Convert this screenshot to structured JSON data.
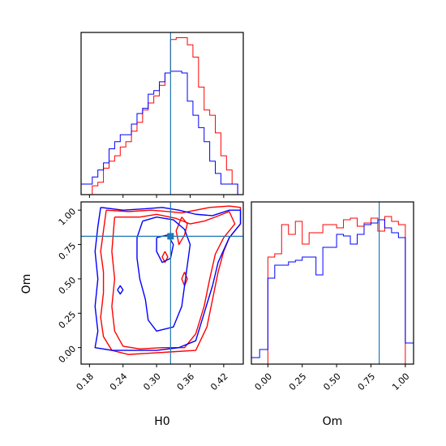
{
  "chart_data": [
    {
      "type": "histogram",
      "panel": "H0 marginal",
      "parameter": "H0",
      "xlim": [
        0.165,
        0.455
      ],
      "truth": 0.325,
      "bin_edges": [
        0.165,
        0.175,
        0.185,
        0.195,
        0.205,
        0.215,
        0.225,
        0.235,
        0.245,
        0.255,
        0.265,
        0.275,
        0.285,
        0.295,
        0.305,
        0.315,
        0.325,
        0.335,
        0.345,
        0.355,
        0.365,
        0.375,
        0.385,
        0.395,
        0.405,
        0.415,
        0.425,
        0.435,
        0.445,
        0.455
      ],
      "series": [
        {
          "color": "#ff0000",
          "values": [
            0,
            0,
            0.05,
            0.07,
            0.15,
            0.19,
            0.22,
            0.27,
            0.3,
            0.36,
            0.41,
            0.48,
            0.52,
            0.56,
            0.62,
            0.69,
            0.88,
            0.89,
            0.89,
            0.85,
            0.78,
            0.61,
            0.48,
            0.45,
            0.35,
            0.22,
            0.14,
            0.06,
            0.0
          ]
        },
        {
          "color": "#0000ff",
          "values": [
            0.06,
            0.06,
            0.1,
            0.14,
            0.18,
            0.26,
            0.3,
            0.34,
            0.34,
            0.4,
            0.46,
            0.49,
            0.57,
            0.59,
            0.64,
            0.69,
            0.7,
            0.7,
            0.69,
            0.53,
            0.45,
            0.38,
            0.3,
            0.19,
            0.12,
            0.06,
            0.06,
            0.06,
            0.0
          ]
        }
      ]
    },
    {
      "type": "contour",
      "panel": "H0 vs Om",
      "xlabel": "H0",
      "ylabel": "Om",
      "xlim": [
        0.165,
        0.455
      ],
      "ylim": [
        -0.12,
        1.06
      ],
      "xticks": [
        "0.18",
        "0.24",
        "0.30",
        "0.36",
        "0.42"
      ],
      "yticks": [
        "0.00",
        "0.25",
        "0.50",
        "0.75",
        "1.00"
      ],
      "truth": {
        "x": 0.325,
        "y": 0.81
      },
      "series": [
        {
          "color": "#ff0000",
          "contours": [
            [
              [
                0.21,
                1.0
              ],
              [
                0.25,
                0.99
              ],
              [
                0.29,
                1.0
              ],
              [
                0.32,
                0.99
              ],
              [
                0.345,
                0.98
              ],
              [
                0.37,
                1.0
              ],
              [
                0.395,
                1.02
              ],
              [
                0.43,
                1.03
              ],
              [
                0.45,
                1.02
              ],
              [
                0.45,
                0.9
              ],
              [
                0.43,
                0.8
              ],
              [
                0.42,
                0.7
              ],
              [
                0.41,
                0.55
              ],
              [
                0.4,
                0.35
              ],
              [
                0.39,
                0.15
              ],
              [
                0.37,
                -0.02
              ],
              [
                0.33,
                -0.03
              ],
              [
                0.29,
                -0.04
              ],
              [
                0.25,
                -0.05
              ],
              [
                0.22,
                -0.02
              ],
              [
                0.205,
                0.08
              ],
              [
                0.2,
                0.22
              ],
              [
                0.205,
                0.4
              ],
              [
                0.205,
                0.55
              ],
              [
                0.2,
                0.7
              ],
              [
                0.205,
                0.85
              ],
              [
                0.21,
                1.0
              ]
            ],
            [
              [
                0.225,
                0.95
              ],
              [
                0.27,
                0.95
              ],
              [
                0.3,
                0.97
              ],
              [
                0.335,
                0.94
              ],
              [
                0.36,
                0.9
              ],
              [
                0.385,
                0.92
              ],
              [
                0.405,
                0.95
              ],
              [
                0.43,
                0.99
              ],
              [
                0.44,
                0.9
              ],
              [
                0.42,
                0.8
              ],
              [
                0.405,
                0.68
              ],
              [
                0.395,
                0.5
              ],
              [
                0.385,
                0.3
              ],
              [
                0.37,
                0.1
              ],
              [
                0.35,
                0.0
              ],
              [
                0.31,
                0.0
              ],
              [
                0.27,
                -0.01
              ],
              [
                0.24,
                0.01
              ],
              [
                0.225,
                0.12
              ],
              [
                0.22,
                0.3
              ],
              [
                0.225,
                0.5
              ],
              [
                0.22,
                0.7
              ],
              [
                0.225,
                0.95
              ]
            ],
            [
              [
                0.345,
                0.95
              ],
              [
                0.355,
                0.9
              ],
              [
                0.35,
                0.82
              ],
              [
                0.34,
                0.75
              ],
              [
                0.335,
                0.85
              ],
              [
                0.345,
                0.95
              ]
            ],
            [
              [
                0.315,
                0.7
              ],
              [
                0.32,
                0.66
              ],
              [
                0.315,
                0.62
              ],
              [
                0.31,
                0.66
              ],
              [
                0.315,
                0.7
              ]
            ],
            [
              [
                0.35,
                0.55
              ],
              [
                0.355,
                0.5
              ],
              [
                0.35,
                0.45
              ],
              [
                0.345,
                0.5
              ],
              [
                0.35,
                0.55
              ]
            ]
          ]
        },
        {
          "color": "#0000ff",
          "contours": [
            [
              [
                0.2,
                1.02
              ],
              [
                0.24,
                1.0
              ],
              [
                0.28,
                1.01
              ],
              [
                0.31,
                1.02
              ],
              [
                0.34,
                1.0
              ],
              [
                0.37,
                0.97
              ],
              [
                0.4,
                0.96
              ],
              [
                0.43,
                1.0
              ],
              [
                0.45,
                1.0
              ],
              [
                0.45,
                0.9
              ],
              [
                0.43,
                0.8
              ],
              [
                0.41,
                0.62
              ],
              [
                0.4,
                0.45
              ],
              [
                0.385,
                0.25
              ],
              [
                0.37,
                0.05
              ],
              [
                0.34,
                0.0
              ],
              [
                0.3,
                -0.02
              ],
              [
                0.26,
                -0.02
              ],
              [
                0.22,
                -0.02
              ],
              [
                0.19,
                0.0
              ],
              [
                0.195,
                0.12
              ],
              [
                0.19,
                0.3
              ],
              [
                0.195,
                0.5
              ],
              [
                0.19,
                0.7
              ],
              [
                0.195,
                0.88
              ],
              [
                0.2,
                1.02
              ]
            ],
            [
              [
                0.275,
                0.92
              ],
              [
                0.3,
                0.95
              ],
              [
                0.33,
                0.93
              ],
              [
                0.35,
                0.86
              ],
              [
                0.36,
                0.75
              ],
              [
                0.355,
                0.6
              ],
              [
                0.35,
                0.45
              ],
              [
                0.345,
                0.3
              ],
              [
                0.33,
                0.15
              ],
              [
                0.3,
                0.12
              ],
              [
                0.285,
                0.2
              ],
              [
                0.28,
                0.35
              ],
              [
                0.27,
                0.5
              ],
              [
                0.265,
                0.65
              ],
              [
                0.265,
                0.8
              ],
              [
                0.275,
                0.92
              ]
            ],
            [
              [
                0.3,
                0.8
              ],
              [
                0.32,
                0.82
              ],
              [
                0.33,
                0.75
              ],
              [
                0.325,
                0.65
              ],
              [
                0.31,
                0.62
              ],
              [
                0.3,
                0.7
              ],
              [
                0.3,
                0.8
              ]
            ],
            [
              [
                0.23,
                0.42
              ],
              [
                0.235,
                0.45
              ],
              [
                0.24,
                0.42
              ],
              [
                0.235,
                0.39
              ],
              [
                0.23,
                0.42
              ]
            ]
          ]
        }
      ]
    },
    {
      "type": "histogram",
      "panel": "Om marginal",
      "parameter": "Om",
      "xlabel": "Om",
      "xlim": [
        -0.12,
        1.06
      ],
      "xticks": [
        "0.00",
        "0.25",
        "0.50",
        "0.75",
        "1.00"
      ],
      "truth": 0.81,
      "bin_edges": [
        -0.12,
        -0.06,
        0.0,
        0.05,
        0.1,
        0.15,
        0.2,
        0.25,
        0.3,
        0.35,
        0.4,
        0.45,
        0.5,
        0.55,
        0.6,
        0.65,
        0.7,
        0.75,
        0.8,
        0.85,
        0.9,
        0.95,
        1.0,
        1.06
      ],
      "series": [
        {
          "color": "#ff0000",
          "values": [
            0,
            0,
            0.66,
            0.68,
            0.86,
            0.8,
            0.88,
            0.74,
            0.81,
            0.81,
            0.86,
            0.86,
            0.84,
            0.89,
            0.9,
            0.85,
            0.87,
            0.9,
            0.82,
            0.91,
            0.88,
            0.86,
            0
          ]
        },
        {
          "color": "#0000ff",
          "values": [
            0.04,
            0.09,
            0.53,
            0.61,
            0.61,
            0.63,
            0.64,
            0.66,
            0.66,
            0.55,
            0.72,
            0.72,
            0.8,
            0.79,
            0.74,
            0.8,
            0.86,
            0.87,
            0.89,
            0.84,
            0.81,
            0.78,
            0.13
          ]
        }
      ]
    }
  ],
  "colors": {
    "truth": "#1f77b4",
    "red": "#ff0000",
    "blue": "#0000ff"
  }
}
